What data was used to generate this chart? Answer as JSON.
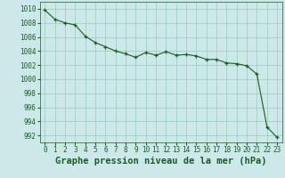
{
  "title": "Graphe pression niveau de la mer (hPa)",
  "x_values": [
    0,
    1,
    2,
    3,
    4,
    5,
    6,
    7,
    8,
    9,
    10,
    11,
    12,
    13,
    14,
    15,
    16,
    17,
    18,
    19,
    20,
    21,
    22,
    23
  ],
  "y_values": [
    1009.8,
    1008.5,
    1008.0,
    1007.7,
    1006.1,
    1005.2,
    1004.6,
    1004.0,
    1003.6,
    1003.1,
    1003.8,
    1003.4,
    1003.9,
    1003.4,
    1003.5,
    1003.3,
    1002.8,
    1002.8,
    1002.3,
    1002.2,
    1001.9,
    1000.7,
    993.2,
    991.7
  ],
  "ylim": [
    991,
    1011
  ],
  "yticks": [
    992,
    994,
    996,
    998,
    1000,
    1002,
    1004,
    1006,
    1008,
    1010
  ],
  "line_color": "#1a5c2a",
  "marker": "+",
  "marker_size": 3,
  "bg_color": "#cce8e8",
  "grid_color": "#99ccbb",
  "title_fontsize": 7.5,
  "tick_fontsize": 5.5,
  "title_color": "#1a5c2a"
}
